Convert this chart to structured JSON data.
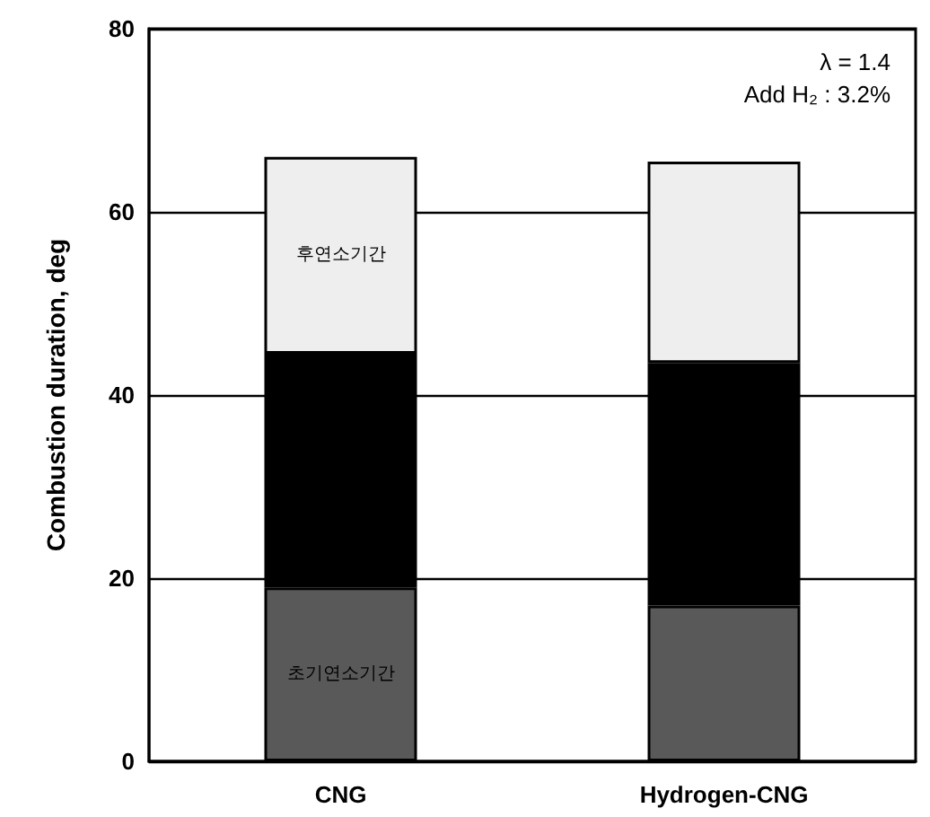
{
  "chart_data": {
    "type": "bar",
    "stacked": true,
    "ylabel": "Combustion duration, deg",
    "categories": [
      "CNG",
      "Hydrogen-CNG"
    ],
    "series": [
      {
        "name": "초기연소기간",
        "color": "#595959",
        "values": [
          19,
          17
        ]
      },
      {
        "color": "#000000",
        "values": [
          25.5,
          26.5
        ]
      },
      {
        "name": "후연소기간",
        "color": "#eeeeee",
        "values": [
          21.5,
          22
        ]
      }
    ],
    "ylim": [
      0,
      80
    ],
    "yticks": [
      0,
      20,
      40,
      60,
      80
    ],
    "grid": "y",
    "legend": false,
    "annotations": [
      "λ = 1.4",
      "Add H₂ : 3.2%"
    ]
  }
}
